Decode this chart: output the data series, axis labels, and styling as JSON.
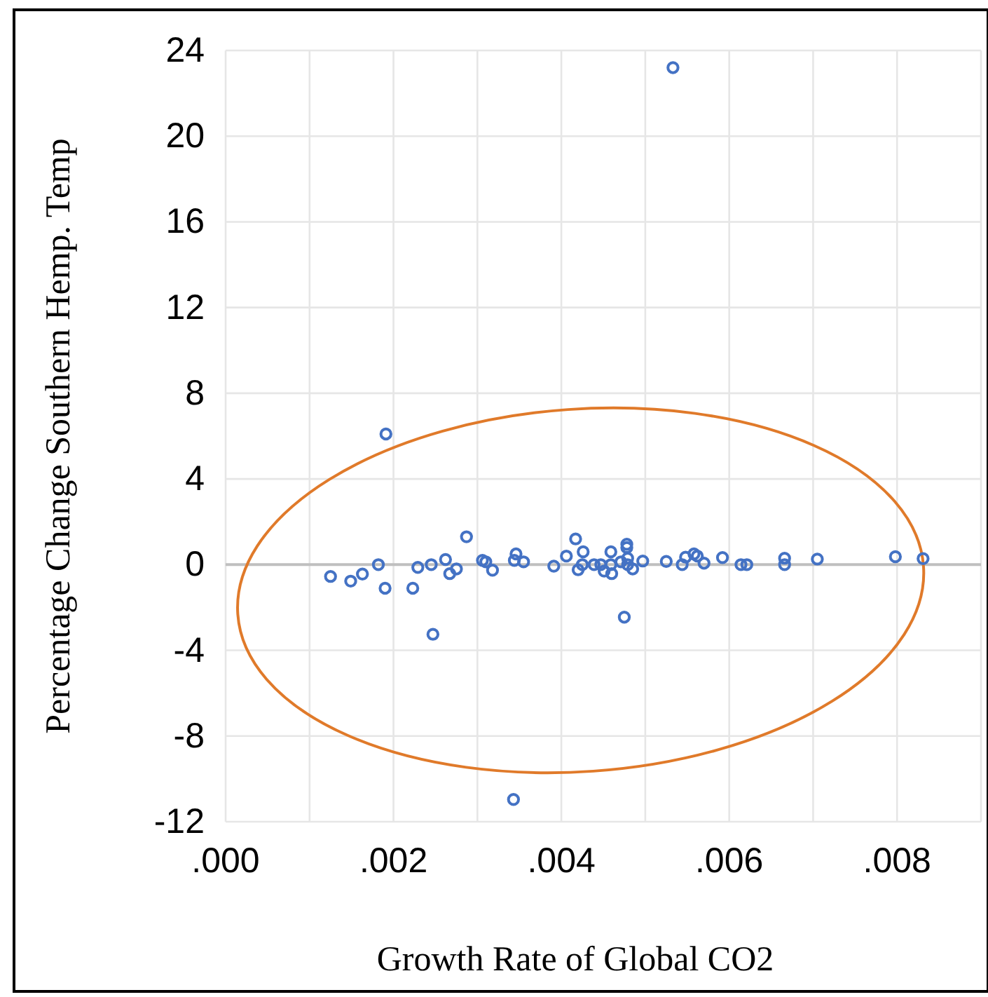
{
  "chart_data": {
    "type": "scatter",
    "xlabel": "Growth Rate of Global CO2",
    "ylabel": "Percentage Change Southern Hemp. Temp",
    "xlim": [
      0,
      0.009
    ],
    "ylim": [
      -12,
      24
    ],
    "xticks": [
      {
        "value": 0,
        "label": ".000"
      },
      {
        "value": 0.001,
        "label": null
      },
      {
        "value": 0.002,
        "label": ".002"
      },
      {
        "value": 0.003,
        "label": null
      },
      {
        "value": 0.004,
        "label": ".004"
      },
      {
        "value": 0.005,
        "label": null
      },
      {
        "value": 0.006,
        "label": ".006"
      },
      {
        "value": 0.007,
        "label": null
      },
      {
        "value": 0.008,
        "label": ".008"
      },
      {
        "value": 0.009,
        "label": null
      }
    ],
    "yticks": [
      -12,
      -8,
      -4,
      0,
      4,
      8,
      12,
      16,
      20,
      24
    ],
    "grid": true,
    "marker": "circle",
    "series": [
      {
        "color": "#4472c4",
        "x": [
          0.00125,
          0.00149,
          0.00163,
          0.00182,
          0.00191,
          0.0019,
          0.00223,
          0.00229,
          0.00245,
          0.00247,
          0.00262,
          0.00267,
          0.00275,
          0.00287,
          0.00306,
          0.0031,
          0.00318,
          0.00344,
          0.00346,
          0.00355,
          0.00391,
          0.00406,
          0.00417,
          0.00426,
          0.0042,
          0.00425,
          0.00439,
          0.00447,
          0.00451,
          0.00459,
          0.00459,
          0.0046,
          0.00471,
          0.00475,
          0.00478,
          0.00478,
          0.00479,
          0.00479,
          0.00485,
          0.00497,
          0.00525,
          0.00544,
          0.00548,
          0.00558,
          0.00562,
          0.0057,
          0.00592,
          0.00614,
          0.00621,
          0.00666,
          0.00666,
          0.00705,
          0.00798,
          0.00831,
          0.00533,
          0.00343
        ],
        "values": [
          -0.55,
          -0.77,
          -0.44,
          0,
          6.1,
          -1.1,
          -1.1,
          -0.13,
          0,
          -3.25,
          0.24,
          -0.42,
          -0.2,
          1.3,
          0.2,
          0.13,
          -0.26,
          0.2,
          0.5,
          0.13,
          -0.07,
          0.4,
          1.2,
          0.6,
          -0.24,
          0,
          0,
          0,
          -0.3,
          0.6,
          0,
          -0.42,
          0.13,
          -2.45,
          0.95,
          0.8,
          0.3,
          0,
          -0.2,
          0.17,
          0.15,
          0,
          0.35,
          0.5,
          0.4,
          0.07,
          0.33,
          0,
          0,
          0.3,
          0,
          0.26,
          0.37,
          0.28,
          23.2,
          -10.96
        ]
      }
    ]
  }
}
